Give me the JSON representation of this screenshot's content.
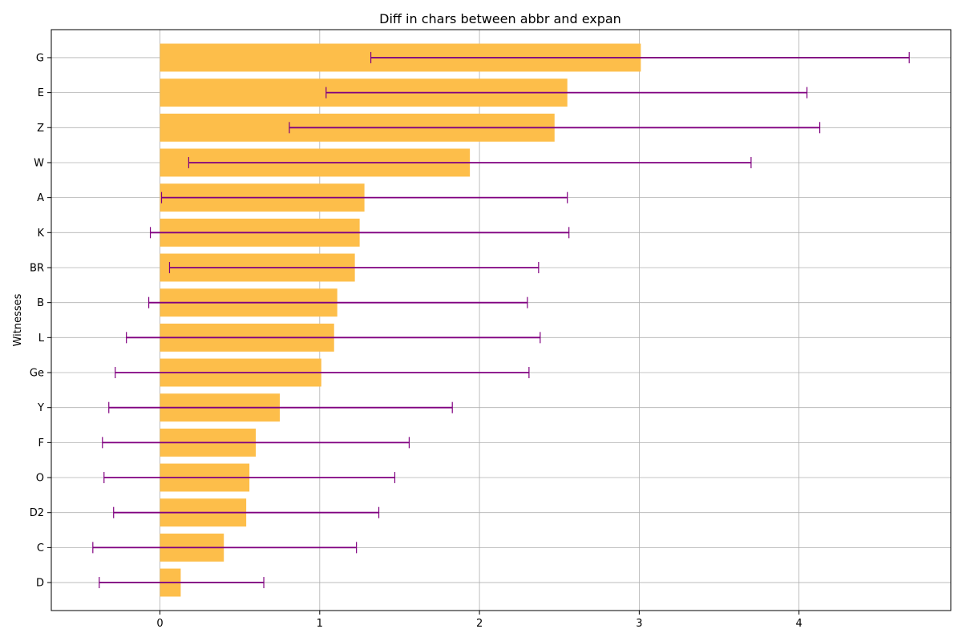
{
  "chart_data": {
    "type": "bar",
    "orientation": "horizontal",
    "title": "Diff in chars between abbr and expan",
    "xlabel": "",
    "ylabel": "Witnesses",
    "xlim": [
      -0.68,
      4.95
    ],
    "xticks": [
      0,
      1,
      2,
      3,
      4
    ],
    "grid": true,
    "colors": {
      "bar": "#fdbe4a",
      "error": "#800080",
      "grid": "#b0b0b0"
    },
    "categories": [
      "D",
      "C",
      "D2",
      "O",
      "F",
      "Y",
      "Ge",
      "L",
      "B",
      "BR",
      "K",
      "A",
      "W",
      "Z",
      "E",
      "G"
    ],
    "values": [
      0.13,
      0.4,
      0.54,
      0.56,
      0.6,
      0.75,
      1.01,
      1.09,
      1.11,
      1.22,
      1.25,
      1.28,
      1.94,
      2.47,
      2.55,
      3.01
    ],
    "error_low": [
      -0.38,
      -0.42,
      -0.29,
      -0.35,
      -0.36,
      -0.32,
      -0.28,
      -0.21,
      -0.07,
      0.06,
      -0.06,
      0.01,
      0.18,
      0.81,
      1.04,
      1.32
    ],
    "error_high": [
      0.65,
      1.23,
      1.37,
      1.47,
      1.56,
      1.83,
      2.31,
      2.38,
      2.3,
      2.37,
      2.56,
      2.55,
      3.7,
      4.13,
      4.05,
      4.69
    ]
  }
}
